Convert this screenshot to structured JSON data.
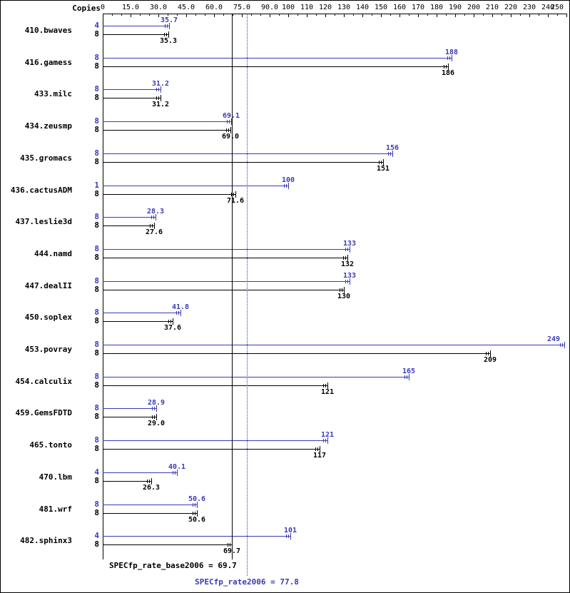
{
  "chart_data": {
    "type": "bar",
    "orientation": "horizontal",
    "title": "",
    "copies_header": "Copies",
    "xlim": [
      0,
      250
    ],
    "minor_tick_step": 5,
    "grid": false,
    "x_ticks": [
      {
        "value": 0,
        "label": "0"
      },
      {
        "value": 15,
        "label": "15.0"
      },
      {
        "value": 30,
        "label": "30.0"
      },
      {
        "value": 45,
        "label": "45.0"
      },
      {
        "value": 60,
        "label": "60.0"
      },
      {
        "value": 75,
        "label": "75.0"
      },
      {
        "value": 90,
        "label": "90.0"
      },
      {
        "value": 100,
        "label": "100"
      },
      {
        "value": 110,
        "label": "110"
      },
      {
        "value": 120,
        "label": "120"
      },
      {
        "value": 130,
        "label": "130"
      },
      {
        "value": 140,
        "label": "140"
      },
      {
        "value": 150,
        "label": "150"
      },
      {
        "value": 160,
        "label": "160"
      },
      {
        "value": 170,
        "label": "170"
      },
      {
        "value": 180,
        "label": "180"
      },
      {
        "value": 190,
        "label": "190"
      },
      {
        "value": 200,
        "label": "200"
      },
      {
        "value": 210,
        "label": "210"
      },
      {
        "value": 220,
        "label": "220"
      },
      {
        "value": 230,
        "label": "230"
      },
      {
        "value": 240,
        "label": "240"
      },
      {
        "value": 250,
        "label": "250"
      }
    ],
    "colors": {
      "peak": "#3a3ab8",
      "base": "#000000"
    },
    "series": [
      {
        "name": "peak",
        "color_key": "peak"
      },
      {
        "name": "base",
        "color_key": "base"
      }
    ],
    "benchmarks": [
      {
        "name": "410.bwaves",
        "peak_copies": "4",
        "peak_value": 35.7,
        "peak_label": "35.7",
        "base_copies": "8",
        "base_value": 35.3,
        "base_label": "35.3"
      },
      {
        "name": "416.gamess",
        "peak_copies": "8",
        "peak_value": 188,
        "peak_label": "188",
        "base_copies": "8",
        "base_value": 186,
        "base_label": "186"
      },
      {
        "name": "433.milc",
        "peak_copies": "8",
        "peak_value": 31.2,
        "peak_label": "31.2",
        "base_copies": "8",
        "base_value": 31.2,
        "base_label": "31.2"
      },
      {
        "name": "434.zeusmp",
        "peak_copies": "8",
        "peak_value": 69.1,
        "peak_label": "69.1",
        "base_copies": "8",
        "base_value": 69.0,
        "base_label": "69.0"
      },
      {
        "name": "435.gromacs",
        "peak_copies": "8",
        "peak_value": 156,
        "peak_label": "156",
        "base_copies": "8",
        "base_value": 151,
        "base_label": "151"
      },
      {
        "name": "436.cactusADM",
        "peak_copies": "1",
        "peak_value": 100,
        "peak_label": "100",
        "base_copies": "8",
        "base_value": 71.6,
        "base_label": "71.6"
      },
      {
        "name": "437.leslie3d",
        "peak_copies": "8",
        "peak_value": 28.3,
        "peak_label": "28.3",
        "base_copies": "8",
        "base_value": 27.6,
        "base_label": "27.6"
      },
      {
        "name": "444.namd",
        "peak_copies": "8",
        "peak_value": 133,
        "peak_label": "133",
        "base_copies": "8",
        "base_value": 132,
        "base_label": "132"
      },
      {
        "name": "447.dealII",
        "peak_copies": "8",
        "peak_value": 133,
        "peak_label": "133",
        "base_copies": "8",
        "base_value": 130,
        "base_label": "130"
      },
      {
        "name": "450.soplex",
        "peak_copies": "8",
        "peak_value": 41.8,
        "peak_label": "41.8",
        "base_copies": "8",
        "base_value": 37.6,
        "base_label": "37.6"
      },
      {
        "name": "453.povray",
        "peak_copies": "8",
        "peak_value": 249,
        "peak_label": "249",
        "base_copies": "8",
        "base_value": 209,
        "base_label": "209"
      },
      {
        "name": "454.calculix",
        "peak_copies": "8",
        "peak_value": 165,
        "peak_label": "165",
        "base_copies": "8",
        "base_value": 121,
        "base_label": "121"
      },
      {
        "name": "459.GemsFDTD",
        "peak_copies": "8",
        "peak_value": 28.9,
        "peak_label": "28.9",
        "base_copies": "8",
        "base_value": 29.0,
        "base_label": "29.0"
      },
      {
        "name": "465.tonto",
        "peak_copies": "8",
        "peak_value": 121,
        "peak_label": "121",
        "base_copies": "8",
        "base_value": 117,
        "base_label": "117"
      },
      {
        "name": "470.lbm",
        "peak_copies": "4",
        "peak_value": 40.1,
        "peak_label": "40.1",
        "base_copies": "8",
        "base_value": 26.3,
        "base_label": "26.3"
      },
      {
        "name": "481.wrf",
        "peak_copies": "8",
        "peak_value": 50.6,
        "peak_label": "50.6",
        "base_copies": "8",
        "base_value": 50.6,
        "base_label": "50.6"
      },
      {
        "name": "482.sphinx3",
        "peak_copies": "4",
        "peak_value": 101,
        "peak_label": "101",
        "base_copies": "8",
        "base_value": 69.7,
        "base_label": "69.7"
      }
    ],
    "base_mean": {
      "value": 69.7,
      "text": "SPECfp_rate_base2006 = 69.7",
      "line_style": "solid"
    },
    "peak_mean": {
      "value": 77.8,
      "text": "SPECfp_rate2006 = 77.8",
      "line_style": "dotted"
    }
  }
}
